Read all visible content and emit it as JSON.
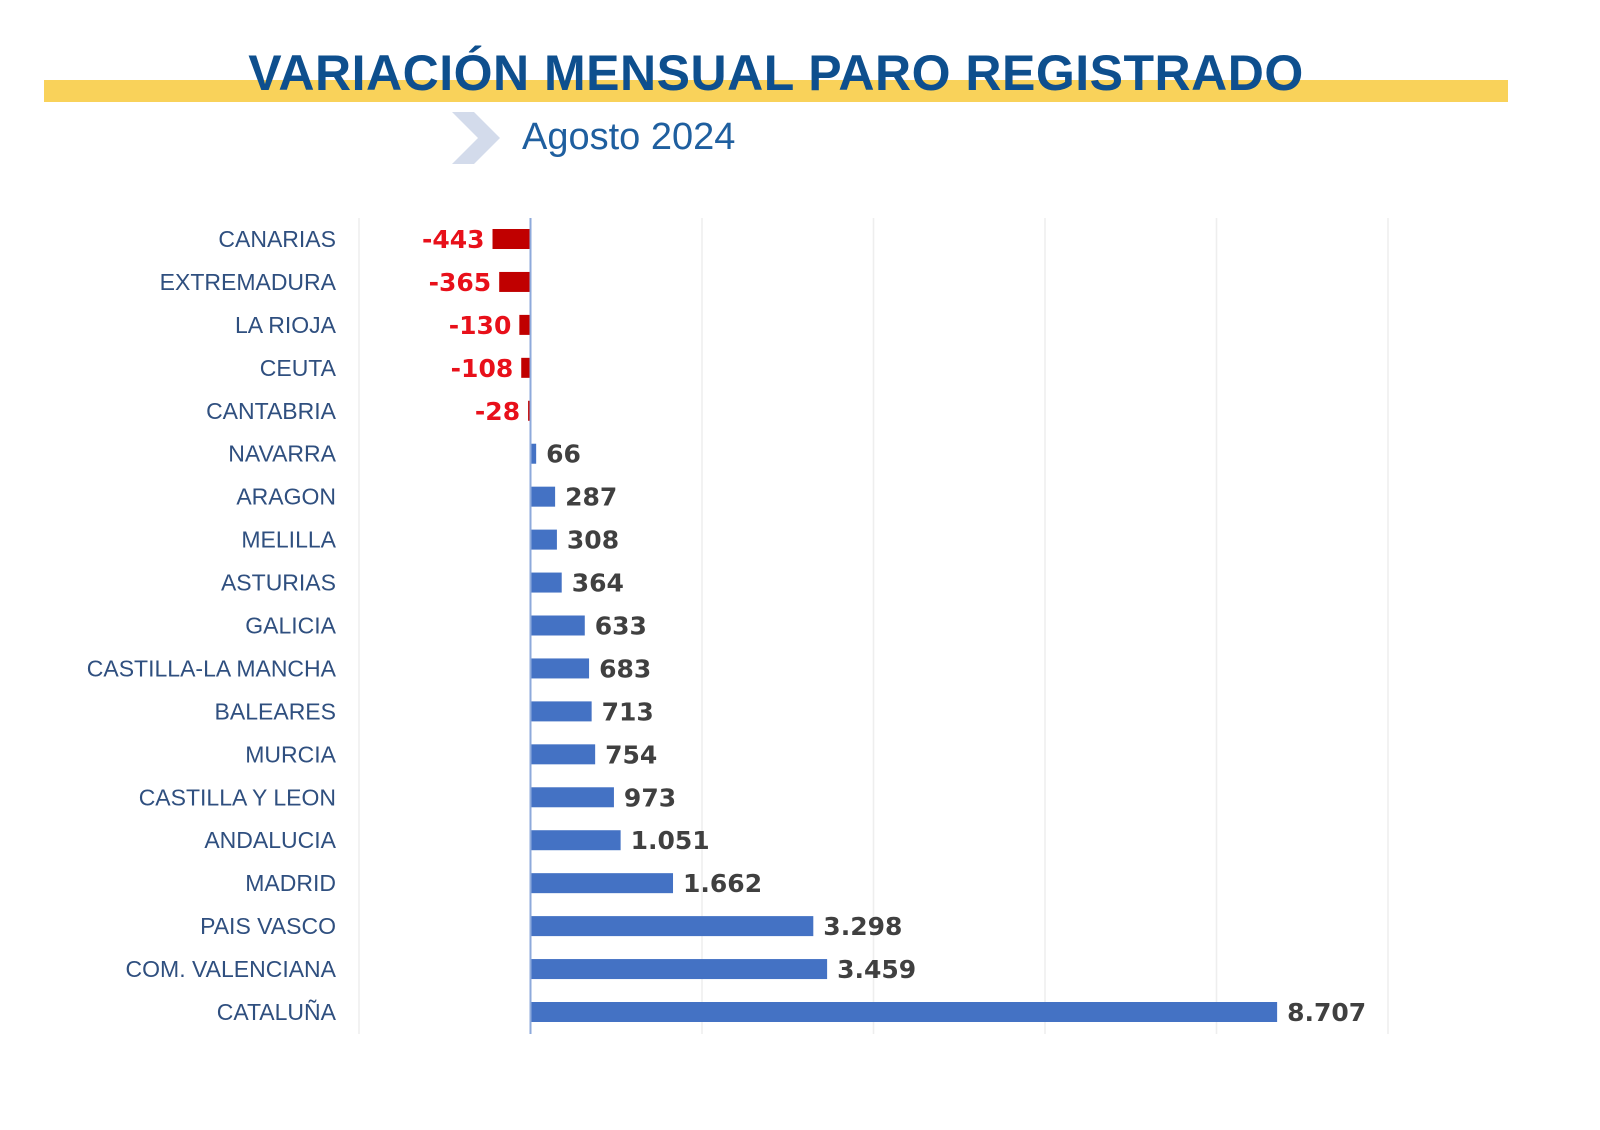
{
  "chart_data": {
    "type": "bar",
    "orientation": "horizontal",
    "title": "VARIACIÓN MENSUAL PARO REGISTRADO",
    "subtitle": "Agosto 2024",
    "categories": [
      "CANARIAS",
      "EXTREMADURA",
      "LA RIOJA",
      "CEUTA",
      "CANTABRIA",
      "NAVARRA",
      "ARAGON",
      "MELILLA",
      "ASTURIAS",
      "GALICIA",
      "CASTILLA-LA MANCHA",
      "BALEARES",
      "MURCIA",
      "CASTILLA Y LEON",
      "ANDALUCIA",
      "MADRID",
      "PAIS VASCO",
      "COM. VALENCIANA",
      "CATALUÑA"
    ],
    "values": [
      -443,
      -365,
      -130,
      -108,
      -28,
      66,
      287,
      308,
      364,
      633,
      683,
      713,
      754,
      973,
      1051,
      1662,
      3298,
      3459,
      8707
    ],
    "data_labels": [
      "-443",
      "-365",
      "-130",
      "-108",
      "-28",
      "66",
      "287",
      "308",
      "364",
      "633",
      "683",
      "713",
      "754",
      "973",
      "1.051",
      "1.662",
      "3.298",
      "3.459",
      "8.707"
    ],
    "xlim": [
      -2000,
      10000
    ],
    "x_gridlines": [
      -2000,
      0,
      2000,
      4000,
      6000,
      8000,
      10000
    ],
    "grid": true,
    "legend": "none",
    "colors": {
      "positive": "#4472c4",
      "negative": "#c00000",
      "negative_label": "#e8101a",
      "positive_label": "#404040",
      "title": "#0e4f8e",
      "band": "#f9d25a"
    }
  }
}
